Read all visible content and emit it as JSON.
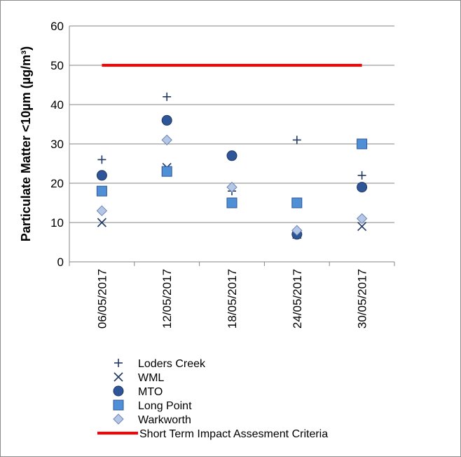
{
  "chart_data": {
    "type": "scatter",
    "title": "",
    "xlabel": "",
    "ylabel": "Particulate Matter <10µm (µg/m³)",
    "ylim": [
      0,
      60
    ],
    "yticks": [
      "0",
      "10",
      "20",
      "30",
      "40",
      "50",
      "60"
    ],
    "grid": "horizontal",
    "legend_position": "bottom",
    "categories": [
      "06/05/2017",
      "12/05/2017",
      "18/05/2017",
      "24/05/2017",
      "30/05/2017"
    ],
    "series": [
      {
        "name": "Loders Creek",
        "marker": "plus",
        "color": "#1f3864",
        "values": [
          26,
          42,
          18,
          31,
          22
        ]
      },
      {
        "name": "WML",
        "marker": "cross",
        "color": "#1f3864",
        "values": [
          10,
          24,
          null,
          7,
          9
        ]
      },
      {
        "name": "MTO",
        "marker": "circle",
        "color": "#2e5597",
        "values": [
          22,
          36,
          27,
          7,
          19
        ]
      },
      {
        "name": "Long Point",
        "marker": "square",
        "color": "#4f8fd6",
        "values": [
          18,
          23,
          15,
          15,
          30
        ]
      },
      {
        "name": "Warkworth",
        "marker": "diamond",
        "color": "#b4c7e7",
        "values": [
          13,
          31,
          19,
          8,
          11
        ]
      }
    ],
    "reference_line": {
      "name": "Short Term Impact Assesment Criteria",
      "value": 50,
      "color": "#ff0000"
    }
  }
}
